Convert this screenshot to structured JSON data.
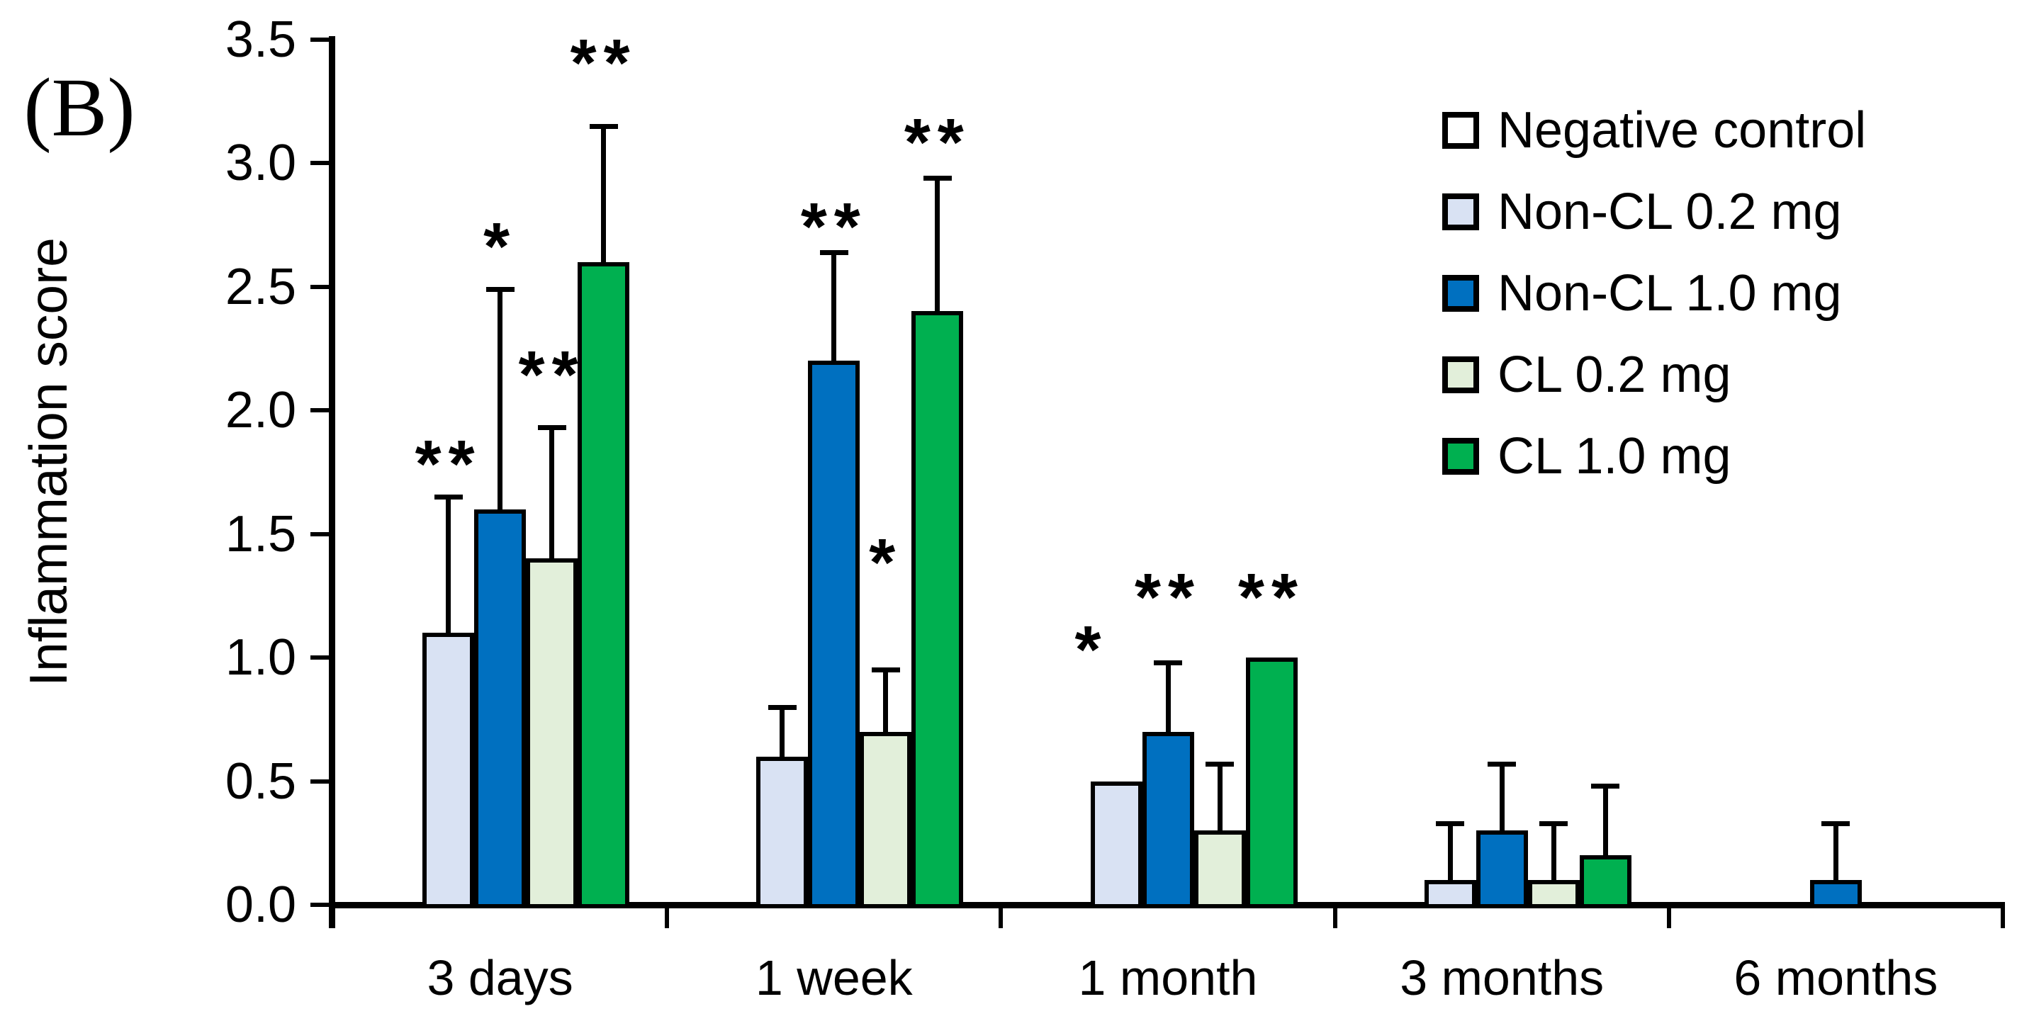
{
  "panel_label": "(B)",
  "chart_data": {
    "type": "bar",
    "title": "",
    "ylabel": "Inflammation score",
    "xlabel": "",
    "ylim": [
      0,
      3.5
    ],
    "ytick_step": 0.5,
    "yticks": [
      "0.0",
      "0.5",
      "1.0",
      "1.5",
      "2.0",
      "2.5",
      "3.0",
      "3.5"
    ],
    "categories": [
      "3 days",
      "1 week",
      "1 month",
      "3 months",
      "6 months"
    ],
    "grid": false,
    "legend_position": "upper right",
    "significance_note": "asterisk markers denote significance (* and **)",
    "colors": {
      "bar_border": "#000000",
      "axis": "#000000",
      "background": "#FFFFFF"
    },
    "series": [
      {
        "name": "Negative control",
        "fill": "#FFFFFF",
        "values": [
          0,
          0,
          0,
          0,
          0
        ],
        "error_tops": [
          null,
          null,
          null,
          null,
          null
        ],
        "markers": [
          null,
          null,
          null,
          null,
          null
        ]
      },
      {
        "name": "Non-CL 0.2 mg",
        "fill": "#D9E2F3",
        "values": [
          1.1,
          0.6,
          0.5,
          0.1,
          0
        ],
        "error_tops": [
          1.65,
          0.8,
          null,
          0.33,
          null
        ],
        "markers": [
          {
            "text": "**",
            "y": 1.82
          },
          null,
          {
            "text": "*",
            "y": 1.07,
            "dx": -35
          },
          null,
          null
        ]
      },
      {
        "name": "Non-CL 1.0 mg",
        "fill": "#0070C0",
        "values": [
          1.6,
          2.2,
          0.7,
          0.3,
          0.1
        ],
        "error_tops": [
          2.49,
          2.64,
          0.98,
          0.57,
          0.33
        ],
        "markers": [
          {
            "text": "*",
            "y": 2.7
          },
          {
            "text": "**",
            "y": 2.78
          },
          {
            "text": "**",
            "y": 1.28
          },
          null,
          null
        ]
      },
      {
        "name": "CL 0.2 mg",
        "fill": "#E2EFDA",
        "values": [
          1.4,
          0.7,
          0.3,
          0.1,
          0
        ],
        "error_tops": [
          1.93,
          0.95,
          0.57,
          0.33,
          null
        ],
        "markers": [
          {
            "text": "**",
            "y": 2.18
          },
          {
            "text": "*",
            "y": 1.42
          },
          null,
          null,
          null
        ]
      },
      {
        "name": "CL 1.0 mg",
        "fill": "#00B050",
        "values": [
          2.6,
          2.4,
          1.0,
          0.2,
          0
        ],
        "error_tops": [
          3.15,
          2.94,
          null,
          0.48,
          null
        ],
        "markers": [
          {
            "text": "**",
            "y": 3.44
          },
          {
            "text": "**",
            "y": 3.12
          },
          {
            "text": "**",
            "y": 1.28
          },
          null,
          null
        ]
      }
    ]
  }
}
